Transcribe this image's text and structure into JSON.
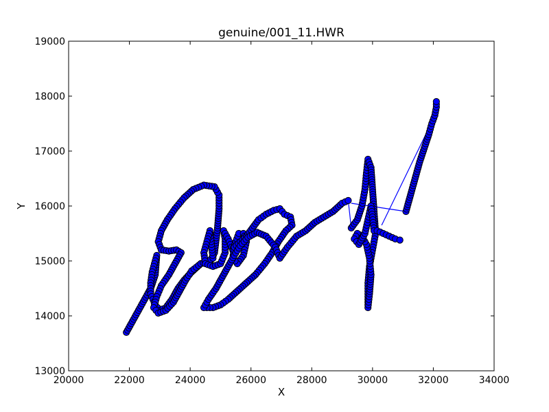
{
  "chart_data": {
    "type": "scatter",
    "title": "genuine/001_11.HWR",
    "xlabel": "X",
    "ylabel": "Y",
    "xlim": [
      20000,
      34000
    ],
    "ylim": [
      13000,
      19000
    ],
    "xticks": [
      "20000",
      "22000",
      "24000",
      "26000",
      "28000",
      "30000",
      "32000",
      "34000"
    ],
    "yticks": [
      "13000",
      "14000",
      "15000",
      "16000",
      "17000",
      "18000",
      "19000"
    ],
    "grid": false,
    "legend": "none",
    "marker_color": "#0000ff",
    "marker_edge_color": "#000000",
    "line_color": "#0000ff",
    "series": [
      {
        "points": [
          [
            21900,
            13700
          ],
          [
            22100,
            13900
          ],
          [
            22300,
            14100
          ],
          [
            22500,
            14300
          ],
          [
            22700,
            14500
          ],
          [
            22850,
            14750
          ],
          [
            22900,
            15100
          ],
          [
            22850,
            15000
          ],
          [
            22750,
            14800
          ],
          [
            22700,
            14600
          ],
          [
            22700,
            14400
          ],
          [
            22850,
            14200
          ],
          [
            23000,
            14100
          ],
          [
            23200,
            14150
          ],
          [
            23400,
            14300
          ],
          [
            23600,
            14500
          ],
          [
            23800,
            14650
          ],
          [
            24050,
            14800
          ],
          [
            24350,
            14950
          ],
          [
            24650,
            14980
          ],
          [
            24800,
            15150
          ],
          [
            24900,
            15600
          ],
          [
            24950,
            15950
          ],
          [
            24950,
            16200
          ],
          [
            24800,
            16350
          ],
          [
            24450,
            16380
          ],
          [
            24100,
            16300
          ],
          [
            23800,
            16150
          ],
          [
            23500,
            15950
          ],
          [
            23250,
            15750
          ],
          [
            23050,
            15550
          ],
          [
            22950,
            15350
          ],
          [
            23050,
            15200
          ],
          [
            23300,
            15180
          ],
          [
            23550,
            15200
          ],
          [
            23700,
            15150
          ],
          [
            23500,
            14950
          ],
          [
            23300,
            14750
          ],
          [
            23050,
            14550
          ],
          [
            22900,
            14350
          ],
          [
            22800,
            14150
          ],
          [
            22950,
            14050
          ],
          [
            23200,
            14100
          ],
          [
            23450,
            14250
          ],
          [
            23650,
            14450
          ],
          [
            23850,
            14650
          ],
          [
            24050,
            14820
          ],
          [
            24350,
            14950
          ],
          [
            24600,
            15000
          ],
          [
            24750,
            15050
          ],
          [
            24700,
            15300
          ],
          [
            24650,
            15550
          ],
          [
            24550,
            15350
          ],
          [
            24450,
            15150
          ],
          [
            24500,
            14950
          ],
          [
            24750,
            14900
          ],
          [
            25000,
            14950
          ],
          [
            25150,
            15150
          ],
          [
            25150,
            15400
          ],
          [
            25100,
            15550
          ],
          [
            25250,
            15400
          ],
          [
            25400,
            15200
          ],
          [
            25500,
            15350
          ],
          [
            25600,
            15500
          ],
          [
            25750,
            15500
          ],
          [
            25850,
            15350
          ],
          [
            25750,
            15100
          ],
          [
            25550,
            14950
          ],
          [
            25400,
            15050
          ],
          [
            25450,
            15250
          ],
          [
            25650,
            15350
          ],
          [
            25850,
            15450
          ],
          [
            26050,
            15600
          ],
          [
            26250,
            15750
          ],
          [
            26500,
            15850
          ],
          [
            26750,
            15920
          ],
          [
            26950,
            15950
          ],
          [
            27100,
            15850
          ],
          [
            27300,
            15800
          ],
          [
            27350,
            15650
          ],
          [
            27150,
            15550
          ],
          [
            26900,
            15350
          ],
          [
            26700,
            15150
          ],
          [
            26450,
            14950
          ],
          [
            26150,
            14750
          ],
          [
            25850,
            14600
          ],
          [
            25550,
            14450
          ],
          [
            25250,
            14300
          ],
          [
            25000,
            14200
          ],
          [
            24750,
            14150
          ],
          [
            24450,
            14150
          ],
          [
            24600,
            14300
          ],
          [
            24850,
            14500
          ],
          [
            25050,
            14700
          ],
          [
            25250,
            14900
          ],
          [
            25450,
            15100
          ],
          [
            25650,
            15280
          ],
          [
            25900,
            15430
          ],
          [
            26200,
            15520
          ],
          [
            26500,
            15450
          ],
          [
            26800,
            15250
          ],
          [
            26950,
            15050
          ],
          [
            27200,
            15250
          ],
          [
            27500,
            15450
          ],
          [
            27800,
            15550
          ],
          [
            28100,
            15700
          ],
          [
            28400,
            15800
          ],
          [
            28700,
            15900
          ],
          [
            29000,
            16050
          ],
          [
            29200,
            16100
          ]
        ]
      },
      {
        "points": [
          [
            29300,
            15600
          ],
          [
            29500,
            15750
          ],
          [
            29650,
            16000
          ],
          [
            29750,
            16300
          ],
          [
            29800,
            16600
          ],
          [
            29850,
            16850
          ],
          [
            29950,
            16700
          ],
          [
            30000,
            16300
          ],
          [
            30050,
            15900
          ],
          [
            30100,
            15500
          ],
          [
            30000,
            15200
          ],
          [
            29900,
            14900
          ],
          [
            29850,
            14600
          ],
          [
            29850,
            14300
          ],
          [
            29850,
            14150
          ],
          [
            29900,
            14400
          ],
          [
            29950,
            14750
          ],
          [
            29900,
            15050
          ],
          [
            29800,
            15300
          ],
          [
            29650,
            15450
          ],
          [
            29500,
            15500
          ],
          [
            29400,
            15400
          ],
          [
            29550,
            15300
          ],
          [
            29750,
            15500
          ],
          [
            29850,
            15750
          ],
          [
            29950,
            16000
          ],
          [
            30000,
            15800
          ],
          [
            30050,
            15550
          ],
          [
            30150,
            15550
          ],
          [
            30350,
            15500
          ],
          [
            30550,
            15450
          ],
          [
            30750,
            15400
          ],
          [
            30900,
            15380
          ]
        ]
      },
      {
        "points": [
          [
            31100,
            15900
          ],
          [
            31250,
            16200
          ],
          [
            31400,
            16500
          ],
          [
            31550,
            16800
          ],
          [
            31700,
            17050
          ],
          [
            31850,
            17300
          ],
          [
            31950,
            17500
          ],
          [
            32050,
            17650
          ],
          [
            32100,
            17800
          ],
          [
            32100,
            17900
          ]
        ]
      }
    ],
    "connector_lines": [
      [
        [
          29200,
          16100
        ],
        [
          29300,
          15600
        ]
      ],
      [
        [
          29300,
          16050
        ],
        [
          31100,
          15900
        ]
      ],
      [
        [
          30300,
          15650
        ],
        [
          32100,
          17700
        ]
      ]
    ]
  }
}
